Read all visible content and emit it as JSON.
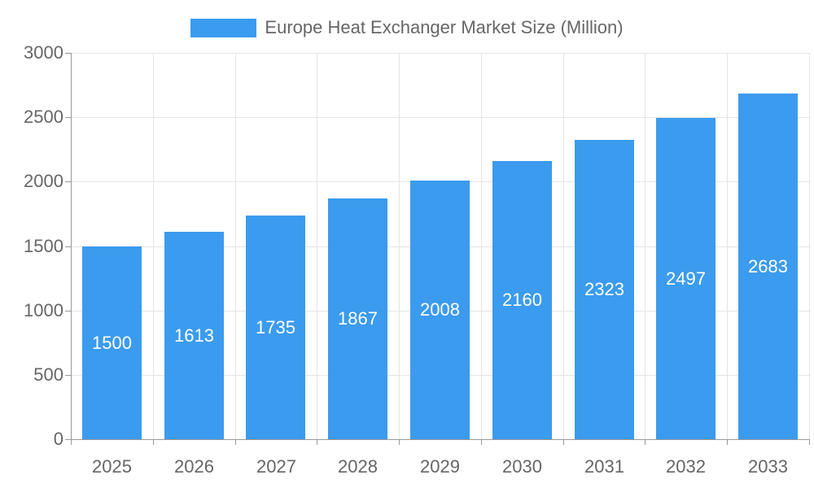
{
  "legend": {
    "series_label": "Europe Heat Exchanger Market Size (Million)"
  },
  "chart_data": {
    "type": "bar",
    "title": "Europe Heat Exchanger Market Size (Million)",
    "categories": [
      "2025",
      "2026",
      "2027",
      "2028",
      "2029",
      "2030",
      "2031",
      "2032",
      "2033"
    ],
    "values": [
      1500,
      1613,
      1735,
      1867,
      2008,
      2160,
      2323,
      2497,
      2683
    ],
    "xlabel": "",
    "ylabel": "",
    "ylim": [
      0,
      3000
    ],
    "yticks": [
      0,
      500,
      1000,
      1500,
      2000,
      2500,
      3000
    ],
    "grid": true,
    "legend_position": "top-center",
    "bar_label_position": "inside-center",
    "colors": {
      "bar": "#3B9BEE",
      "axis_line": "#999999",
      "gridline": "#E4E4E4",
      "axis_text": "#666666",
      "legend_text": "#666666",
      "bar_label_text": "#FFFFFF"
    }
  }
}
